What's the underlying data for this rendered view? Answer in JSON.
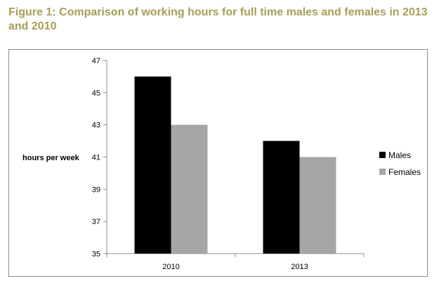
{
  "figure": {
    "title": "Figure 1: Comparison of working hours for full time males and females in 2013 and 2010"
  },
  "colors": {
    "title": "#a79e55",
    "males": "#000000",
    "females": "#a6a6a6",
    "axis": "#8c8c8c"
  },
  "chart_data": {
    "type": "bar",
    "title": "",
    "xlabel": "",
    "ylabel": "hours per week",
    "categories": [
      "2010",
      "2013"
    ],
    "series": [
      {
        "name": "Males",
        "values": [
          46,
          42
        ]
      },
      {
        "name": "Females",
        "values": [
          43,
          41
        ]
      }
    ],
    "ylim": [
      35,
      47
    ],
    "yticks": [
      35,
      37,
      39,
      41,
      43,
      45,
      47
    ],
    "grid": false,
    "legend_position": "right"
  }
}
